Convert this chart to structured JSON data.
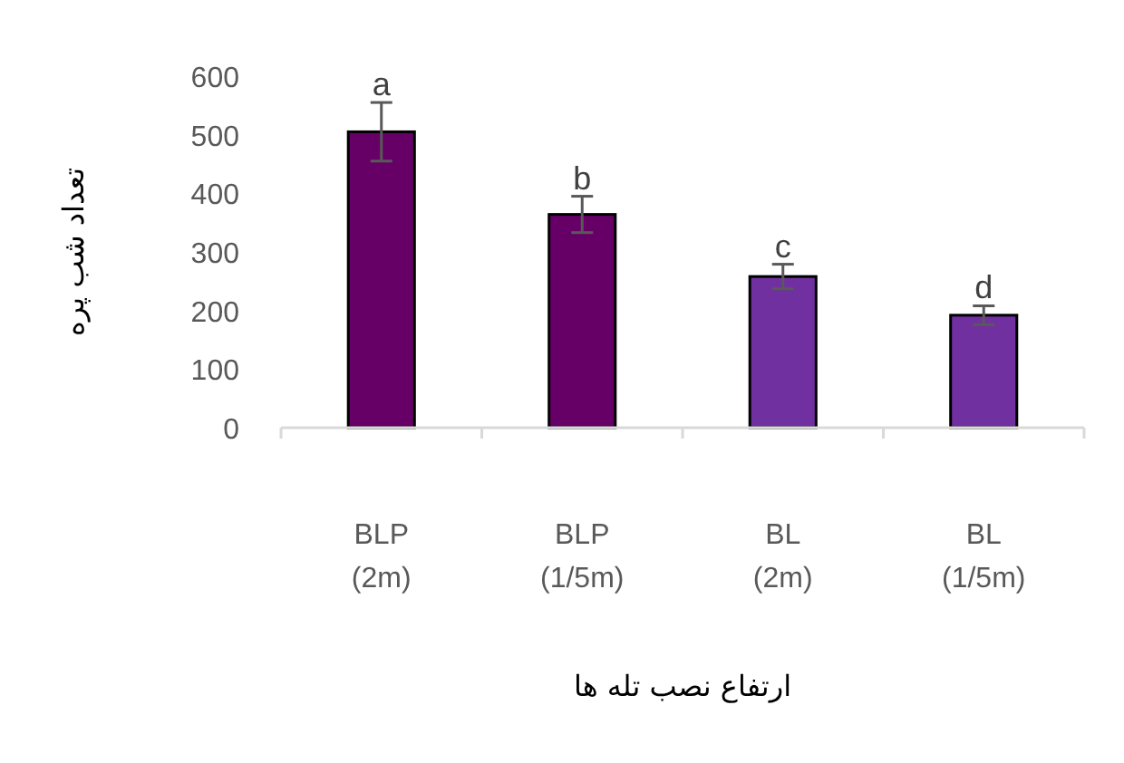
{
  "chart_data": {
    "type": "bar",
    "xlabel": "ارتفاع نصب تله ها",
    "ylabel": "تعداد شب پره",
    "categories": [
      "BLP (2m)",
      "BLP (1/5m)",
      "BL (2m)",
      "BL (1/5m)"
    ],
    "values": [
      505,
      364,
      258,
      192
    ],
    "colors": [
      "#660066",
      "#660066",
      "#7030a0",
      "#7030a0"
    ],
    "errors": [
      50,
      31,
      21,
      16
    ],
    "ylim": [
      0,
      600
    ],
    "yticks": [
      0,
      100,
      200,
      300,
      400,
      500,
      600
    ],
    "grid": false,
    "annotations": [
      {
        "text": "a",
        "x": "BLP (2m)",
        "y": 555
      },
      {
        "text": "b",
        "x": "BLP (1/5m)",
        "y": 395
      },
      {
        "text": "c",
        "x": "BL (2m)",
        "y": 279
      },
      {
        "text": "d",
        "x": "BL (1/5m)",
        "y": 208
      }
    ]
  }
}
